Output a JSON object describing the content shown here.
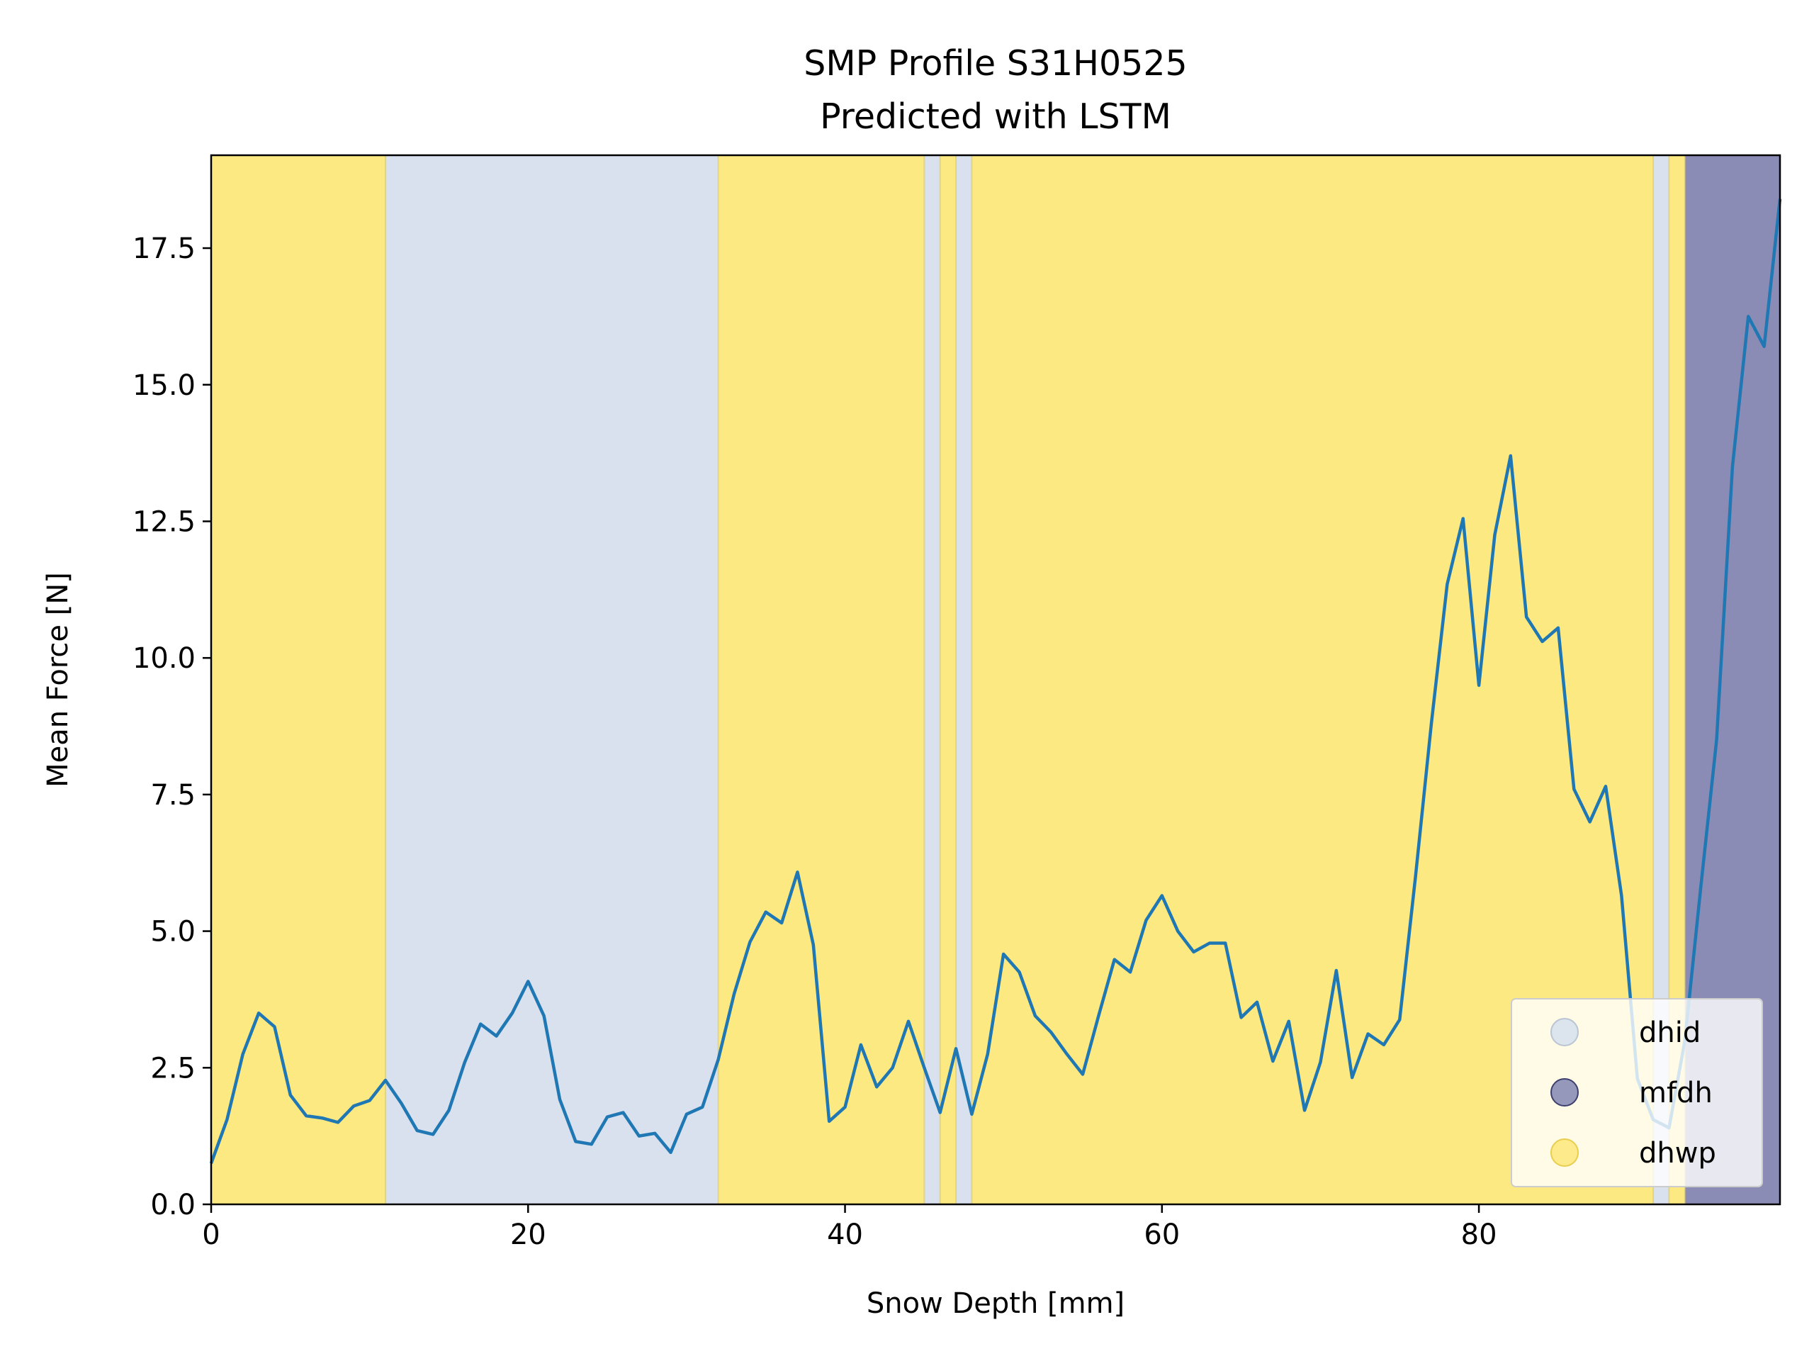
{
  "chart_data": {
    "type": "line",
    "title": "SMP Profile S31H0525",
    "subtitle": "Predicted with LSTM",
    "xlabel": "Snow Depth [mm]",
    "ylabel": "Mean Force [N]",
    "xlim": [
      0,
      99
    ],
    "ylim": [
      0,
      19.2
    ],
    "xticks": [
      0,
      20,
      40,
      60,
      80
    ],
    "xtick_labels": [
      "0",
      "20",
      "40",
      "60",
      "80"
    ],
    "yticks": [
      0,
      2.5,
      5,
      7.5,
      10,
      12.5,
      15,
      17.5
    ],
    "ytick_labels": [
      "0.0",
      "2.5",
      "5.0",
      "7.5",
      "10.0",
      "12.5",
      "15.0",
      "17.5"
    ],
    "grid": false,
    "legend_position": "lower-right",
    "colors": {
      "line": "#1f77b4",
      "dhid": "#d8e1ed",
      "mfdh": "#8a8cb6",
      "dhwp": "#fde981"
    },
    "legend": [
      {
        "label": "dhid",
        "color": "#d8e1ed",
        "edge": "#b9c5d3"
      },
      {
        "label": "mfdh",
        "color": "#8a8cb6",
        "edge": "#3d3f6e"
      },
      {
        "label": "dhwp",
        "color": "#fde981",
        "edge": "#e8cd4e"
      }
    ],
    "segments": [
      {
        "label": "dhwp",
        "start": 0,
        "end": 11
      },
      {
        "label": "dhid",
        "start": 11,
        "end": 32
      },
      {
        "label": "dhwp",
        "start": 32,
        "end": 45
      },
      {
        "label": "dhid",
        "start": 45,
        "end": 46
      },
      {
        "label": "dhwp",
        "start": 46,
        "end": 47
      },
      {
        "label": "dhid",
        "start": 47,
        "end": 48
      },
      {
        "label": "dhwp",
        "start": 48,
        "end": 91
      },
      {
        "label": "dhid",
        "start": 91,
        "end": 92
      },
      {
        "label": "dhwp",
        "start": 92,
        "end": 93
      },
      {
        "label": "mfdh",
        "start": 93,
        "end": 99
      }
    ],
    "series": [
      {
        "x": [
          0,
          1,
          2,
          3,
          4,
          5,
          6,
          7,
          8,
          9,
          10,
          11,
          12,
          13,
          14,
          15,
          16,
          17,
          18,
          19,
          20,
          21,
          22,
          23,
          24,
          25,
          26,
          27,
          28,
          29,
          30,
          31,
          32,
          33,
          34,
          35,
          36,
          37,
          38,
          39,
          40,
          41,
          42,
          43,
          44,
          45,
          46,
          47,
          48,
          49,
          50,
          51,
          52,
          53,
          54,
          55,
          56,
          57,
          58,
          59,
          60,
          61,
          62,
          63,
          64,
          65,
          66,
          67,
          68,
          69,
          70,
          71,
          72,
          73,
          74,
          75,
          76,
          77,
          78,
          79,
          80,
          81,
          82,
          83,
          84,
          85,
          86,
          87,
          88,
          89,
          90,
          91,
          92,
          93,
          94,
          95,
          96,
          97,
          98,
          99
        ],
        "y": [
          0.75,
          1.55,
          2.75,
          3.5,
          3.25,
          2.0,
          1.62,
          1.58,
          1.5,
          1.8,
          1.9,
          2.27,
          1.85,
          1.35,
          1.28,
          1.72,
          2.6,
          3.3,
          3.08,
          3.5,
          4.08,
          3.45,
          1.92,
          1.15,
          1.1,
          1.6,
          1.68,
          1.25,
          1.3,
          0.95,
          1.65,
          1.78,
          2.65,
          3.85,
          4.8,
          5.35,
          5.15,
          6.08,
          4.75,
          1.52,
          1.78,
          2.92,
          2.15,
          2.5,
          3.35,
          2.5,
          1.68,
          2.85,
          1.65,
          2.75,
          4.58,
          4.25,
          3.45,
          3.15,
          2.75,
          2.38,
          3.45,
          4.48,
          4.25,
          5.2,
          5.65,
          5.0,
          4.62,
          4.78,
          4.78,
          3.42,
          3.7,
          2.62,
          3.35,
          1.72,
          2.6,
          4.28,
          2.32,
          3.12,
          2.92,
          3.38,
          6.0,
          8.8,
          11.35,
          12.55,
          9.5,
          12.25,
          13.7,
          10.75,
          10.3,
          10.55,
          7.6,
          7.0,
          7.65,
          5.65,
          2.3,
          1.55,
          1.4,
          3.0,
          5.8,
          8.5,
          13.5,
          16.25,
          15.7,
          18.4
        ]
      }
    ]
  }
}
